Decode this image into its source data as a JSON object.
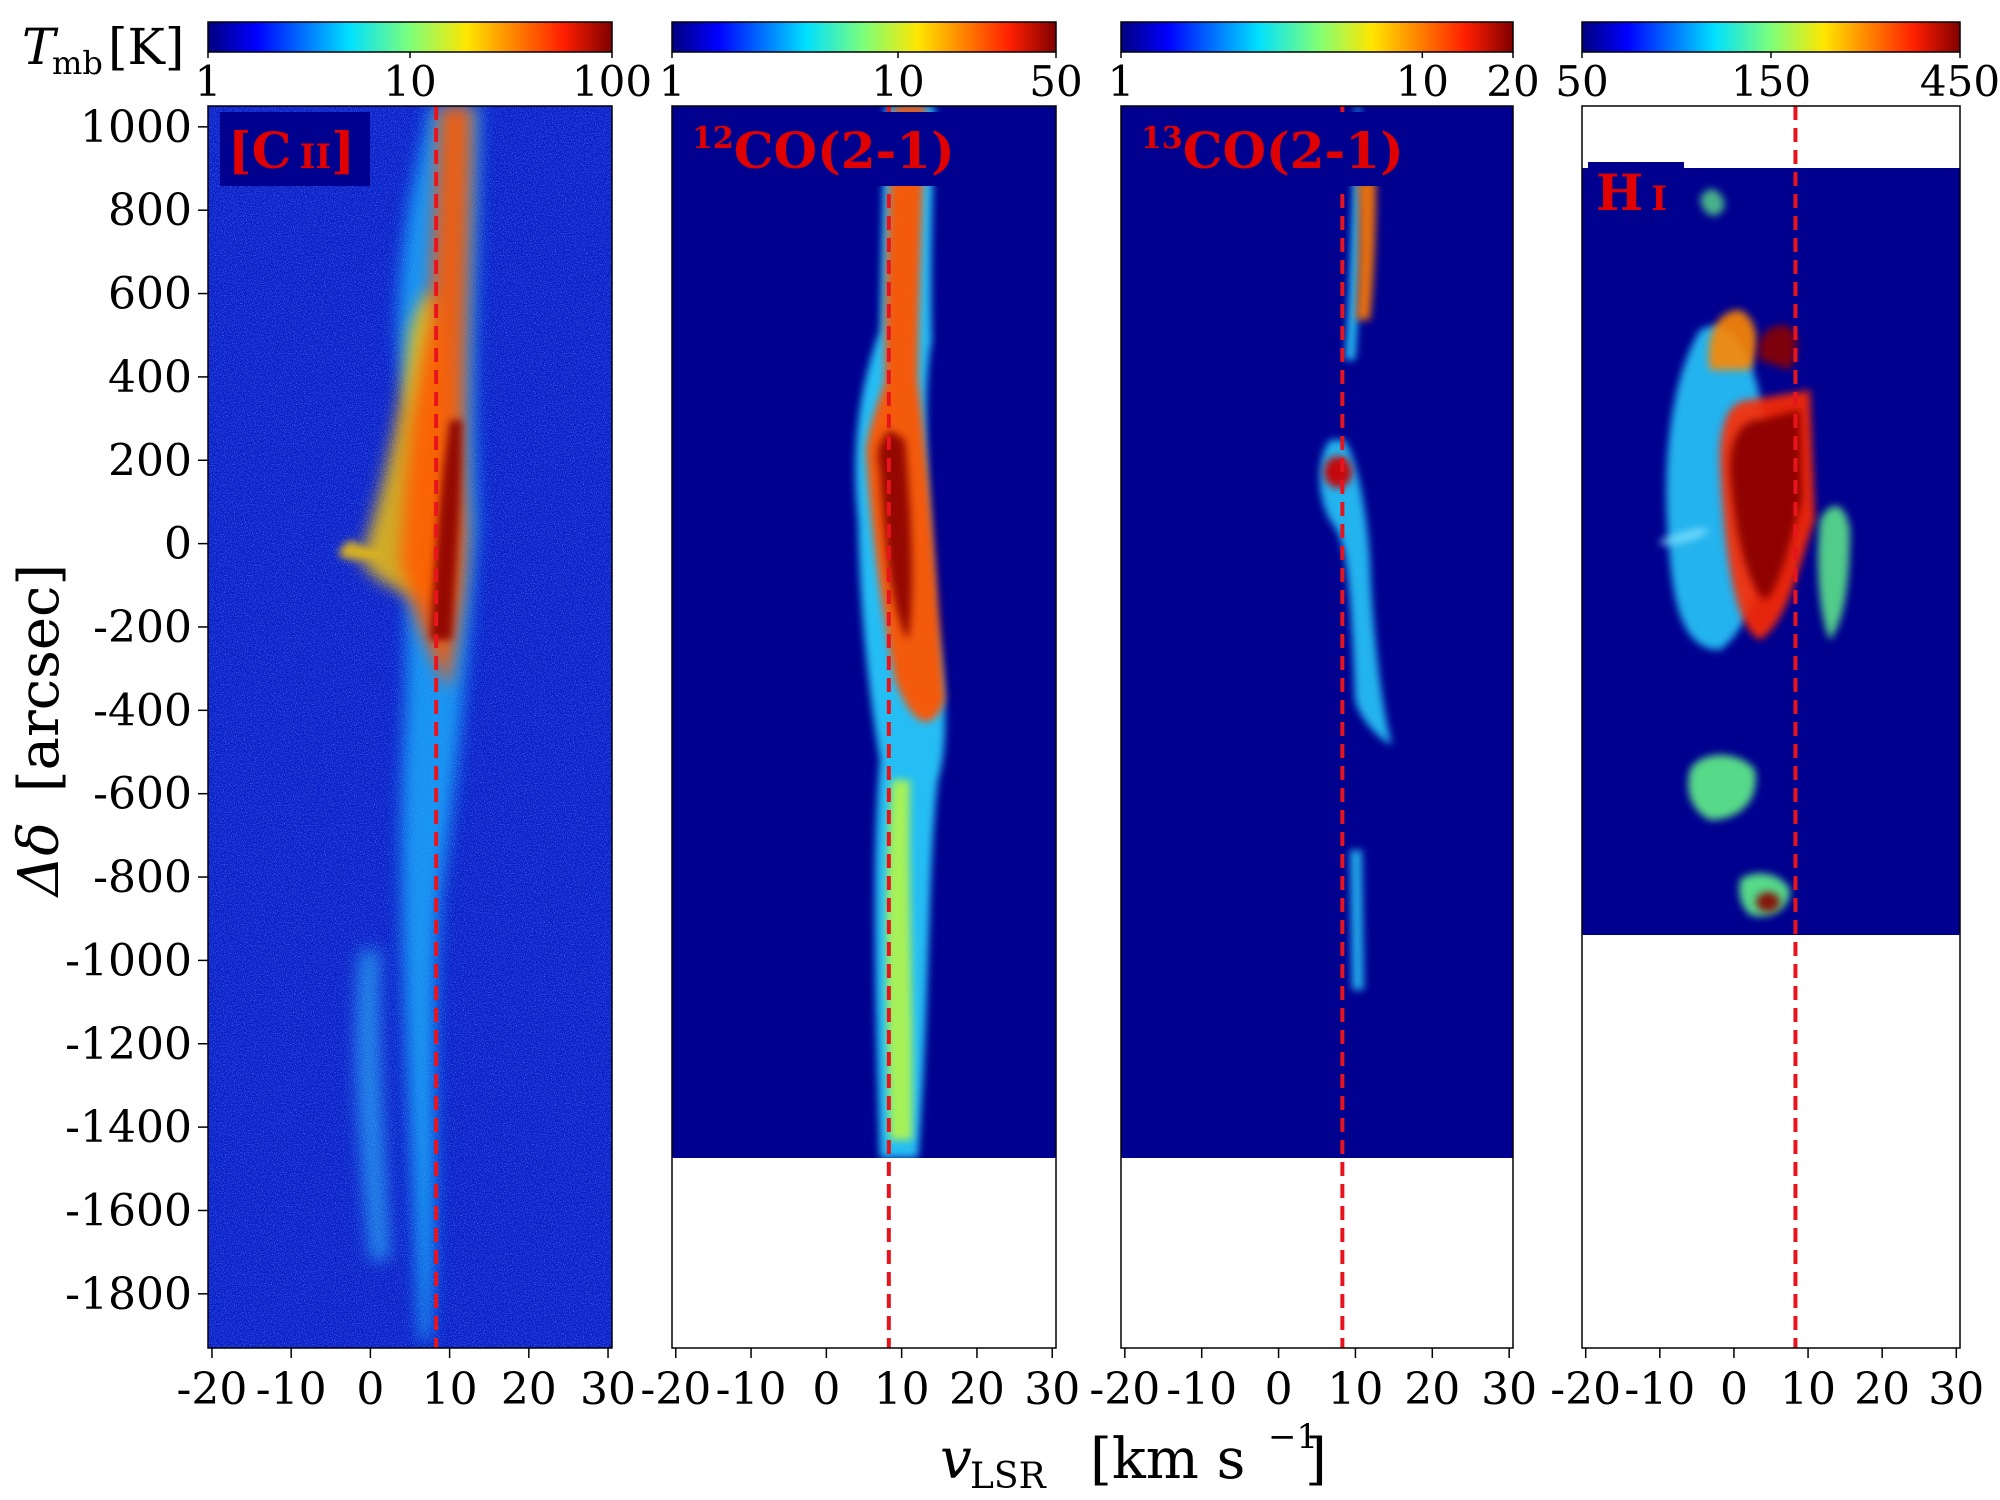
{
  "chart_data": {
    "type": "heatmap",
    "description_free": true,
    "ylabel_main": "Δδ",
    "ylabel_unit": "[arcsec]",
    "xlabel_main": "v",
    "xlabel_sub": "LSR",
    "xlabel_unit_open": "[km s",
    "xlabel_unit_exp": "−1",
    "xlabel_unit_close": "]",
    "colorbar_label_main": "T",
    "colorbar_label_sub": "mb",
    "colorbar_label_unit": "[K]",
    "y_ticks": [
      "1000",
      "800",
      "600",
      "400",
      "200",
      "0",
      "-200",
      "-400",
      "-600",
      "-800",
      "-1000",
      "-1200",
      "-1400",
      "-1600",
      "-1800"
    ],
    "y_tick_values": [
      1000,
      800,
      600,
      400,
      200,
      0,
      -200,
      -400,
      -600,
      -800,
      -1000,
      -1200,
      -1400,
      -1600,
      -1800
    ],
    "ylim": [
      -1930,
      1050
    ],
    "xlim": [
      -20.5,
      30.5
    ],
    "x_ticks": [
      "-20",
      "-10",
      "0",
      "10",
      "20",
      "30"
    ],
    "x_tick_values": [
      -20,
      -10,
      0,
      10,
      20,
      30
    ],
    "reference_velocity": 8.3,
    "reference_line_color": "#e8141d",
    "panels": [
      {
        "name": "[C II]",
        "label_main": "[C",
        "label_roman": "II",
        "label_close": "]",
        "data_range": [
          -1930,
          1050
        ],
        "colorbar_ticks": [
          "1",
          "10",
          "100"
        ],
        "colorbar_tick_values": [
          1,
          10,
          100
        ],
        "colorbar_range": [
          1,
          100
        ],
        "colorbar_scale": "log"
      },
      {
        "name": "12CO(2-1)",
        "label_sup": "12",
        "label_main": "CO(2-1)",
        "data_range": [
          -1470,
          1050
        ],
        "colorbar_ticks": [
          "1",
          "10",
          "50"
        ],
        "colorbar_tick_values": [
          1,
          10,
          50
        ],
        "colorbar_range": [
          1,
          50
        ],
        "colorbar_scale": "log"
      },
      {
        "name": "13CO(2-1)",
        "label_sup": "13",
        "label_main": "CO(2-1)",
        "data_range": [
          -1470,
          1050
        ],
        "colorbar_ticks": [
          "1",
          "10",
          "20"
        ],
        "colorbar_tick_values": [
          1,
          10,
          20
        ],
        "colorbar_range": [
          1,
          20
        ],
        "colorbar_scale": "log"
      },
      {
        "name": "H I",
        "label_main": "H",
        "label_roman": "I",
        "data_range": [
          -930,
          910
        ],
        "colorbar_ticks": [
          "50",
          "150",
          "450"
        ],
        "colorbar_tick_values": [
          50,
          150,
          450
        ],
        "colorbar_range": [
          50,
          450
        ],
        "colorbar_scale": "log"
      }
    ]
  },
  "colors": {
    "background_low": "#00008f",
    "accent": "#e8141d"
  }
}
